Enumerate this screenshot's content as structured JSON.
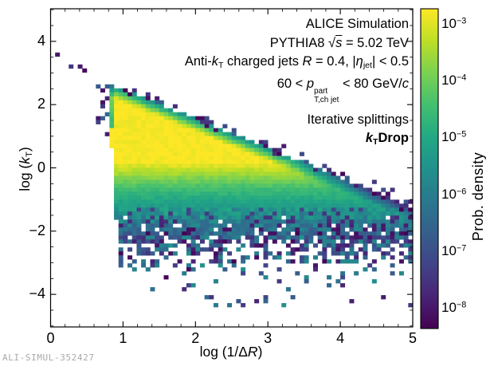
{
  "figure": {
    "background": "#ffffff",
    "axis_color": "#000000",
    "watermark": "ALI-SIMUL-352427",
    "watermark_color": "#a9a9a9"
  },
  "chart_data": {
    "type": "heatmap",
    "title": "ALICE Simulation",
    "annotations": [
      [
        {
          "t": "ALICE Simulation"
        }
      ],
      [
        {
          "t": "PYTHIA8 "
        },
        {
          "t": "√"
        },
        {
          "t": "s",
          "s": "ov i"
        },
        {
          "t": " = 5.02 TeV"
        }
      ],
      [
        {
          "t": "Anti-"
        },
        {
          "t": "k",
          "s": "i"
        },
        {
          "t": "T",
          "s": "sub"
        },
        {
          "t": " charged jets "
        },
        {
          "t": "R",
          "s": "i"
        },
        {
          "t": " = 0.4,  |"
        },
        {
          "t": "η",
          "s": "i"
        },
        {
          "t": "jet",
          "s": "sub"
        },
        {
          "t": "| < 0.5"
        }
      ],
      [
        {
          "t": "60 < "
        },
        {
          "t": "p",
          "s": "i"
        },
        {
          "over": "part",
          "under": "T,ch jet"
        },
        {
          "t": " < 80 GeV/"
        },
        {
          "t": "c",
          "s": "i"
        }
      ],
      [
        {
          "t": "Iterative splittings"
        }
      ],
      [
        {
          "t": "k",
          "s": "i b"
        },
        {
          "t": "T",
          "s": "sub b"
        },
        {
          "t": "Drop",
          "s": "b"
        }
      ]
    ],
    "x_axis": {
      "label_segments": [
        {
          "t": "log (1/Δ"
        },
        {
          "t": "R",
          "s": "i"
        },
        {
          "t": ")"
        }
      ],
      "range": [
        0,
        5
      ],
      "major_ticks": [
        0,
        1,
        2,
        3,
        4,
        5
      ],
      "tick_labels": [
        "0",
        "1",
        "2",
        "3",
        "4",
        "5"
      ],
      "minor_step": 0.2
    },
    "y_axis": {
      "label_segments": [
        {
          "t": "log ("
        },
        {
          "t": "k",
          "s": "i"
        },
        {
          "t": "T",
          "s": "sub"
        },
        {
          "t": ")"
        }
      ],
      "range": [
        -5.03,
        5.03
      ],
      "major_ticks": [
        4,
        2,
        0,
        -2,
        -4
      ],
      "tick_labels": [
        "4",
        "2",
        "0",
        "−2",
        "−4"
      ],
      "minor_step": 0.5
    },
    "colorbar": {
      "label": "Prob. density",
      "tick_exponents": [
        -3,
        -4,
        -5,
        -6,
        -7,
        -8
      ],
      "tick_labels": [
        "−3",
        "−4",
        "−5",
        "−6",
        "−7",
        "−8"
      ],
      "log10_top": -2.72,
      "log10_bottom": -8.35,
      "colormap": "viridis"
    },
    "colormap_stops": [
      "#440154",
      "#482475",
      "#414487",
      "#355f8d",
      "#2a788e",
      "#21918c",
      "#22a884",
      "#44bf70",
      "#7ad151",
      "#bddf26",
      "#fde725"
    ],
    "bins": {
      "nx": 80,
      "ny": 80
    },
    "density_model": {
      "seed": 9,
      "y_top": {
        "a": 3.42,
        "b": -0.93
      },
      "x_left": {
        "a": 0.86,
        "b": -0.028
      },
      "base": {
        "L0": -2.75,
        "y_knee": 0.2,
        "rate1": 2.0,
        "u_break": 0.9,
        "rate2": 1.35
      },
      "top_edge": {
        "width": 0.42,
        "depth": 2.9,
        "dark_prob": 0.18
      },
      "above_edge": {
        "w1": 0.16,
        "p1": 0.3,
        "w2": 0.34,
        "p2": 0.07
      },
      "left_edge": {
        "border_w": 0.09,
        "border_depth": 2.4,
        "border_ymin": 1.25,
        "out_w": 0.17,
        "out_p": 0.38,
        "out_ymin": 1.05,
        "out_ymax": 2.9
      },
      "speckle": {
        "y_start": -2.1,
        "L_hi": -5.6,
        "L_span": 2.7
      },
      "mid_noise": {
        "y_start": -1.2,
        "jitter": 1.0,
        "dark_prob": 0.18,
        "dark_extra": 1.3
      },
      "empty": {
        "y0": -1.95,
        "scale": 1.5,
        "max_p": 0.95,
        "hole_y": -1.5,
        "hole_p": 0.06,
        "cutoff_y": -4.55
      },
      "jitter": 0.3
    }
  }
}
